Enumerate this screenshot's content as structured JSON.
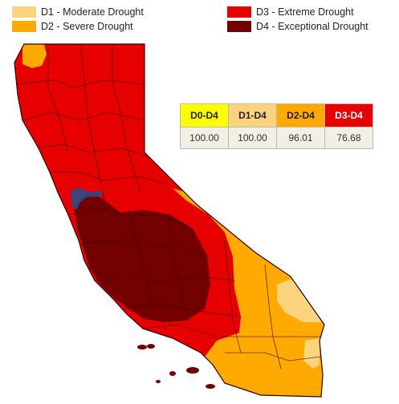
{
  "legend": {
    "items": [
      {
        "label": "D1 - Moderate Drought",
        "color": "#fcd37f"
      },
      {
        "label": "D2 - Severe Drought",
        "color": "#ffaa00"
      },
      {
        "label": "D3 - Extreme Drought",
        "color": "#e60000"
      },
      {
        "label": "D4 - Exceptional Drought",
        "color": "#730000"
      }
    ]
  },
  "stats_table": {
    "headers": [
      "D0-D4",
      "D1-D4",
      "D2-D4",
      "D3-D4"
    ],
    "header_colors": [
      "#ffff00",
      "#fcd37f",
      "#ffaa00",
      "#e60000"
    ],
    "values": [
      "100.00",
      "100.00",
      "96.01",
      "76.68"
    ]
  },
  "map": {
    "colors": {
      "d1": "#fcd37f",
      "d2": "#ffaa00",
      "d3": "#e60000",
      "d4": "#730000",
      "county_lines": "#3a0000",
      "water": "#2a4d8a"
    }
  }
}
